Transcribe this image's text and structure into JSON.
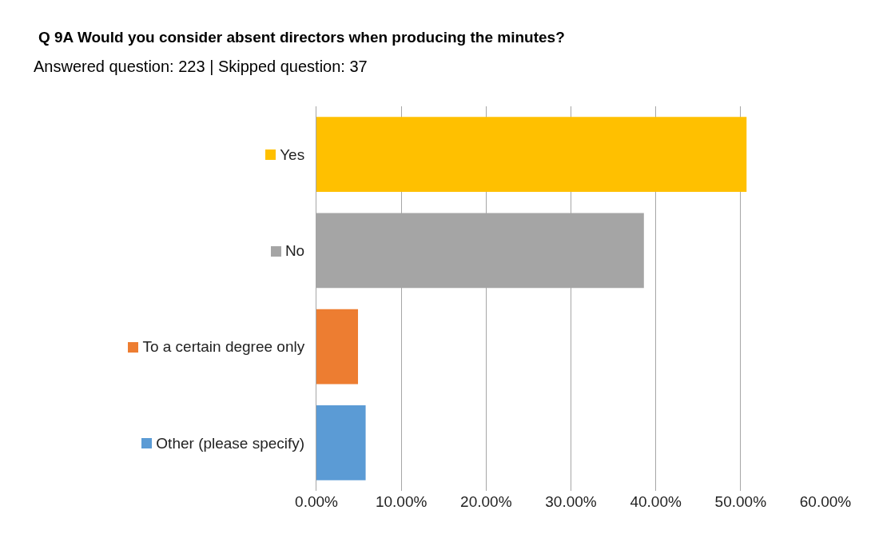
{
  "chart_data": {
    "type": "bar",
    "orientation": "horizontal",
    "title": "Q 9A Would you consider absent directors when producing the minutes?",
    "subtitle": "Answered question: 223 | Skipped question: 37",
    "categories": [
      "Yes",
      "No",
      "To a certain degree only",
      "Other (please specify)"
    ],
    "values": [
      50.7,
      38.6,
      4.9,
      5.8
    ],
    "colors": [
      "#ffc000",
      "#a5a5a5",
      "#ed7d31",
      "#5b9bd5"
    ],
    "xlim": [
      0,
      60
    ],
    "xticks": [
      {
        "value": 0,
        "label": "0.00%"
      },
      {
        "value": 10,
        "label": "10.00%"
      },
      {
        "value": 20,
        "label": "20.00%"
      },
      {
        "value": 30,
        "label": "30.00%"
      },
      {
        "value": 40,
        "label": "40.00%"
      },
      {
        "value": 50,
        "label": "50.00%"
      },
      {
        "value": 60,
        "label": "60.00%"
      }
    ],
    "grid": "x"
  }
}
